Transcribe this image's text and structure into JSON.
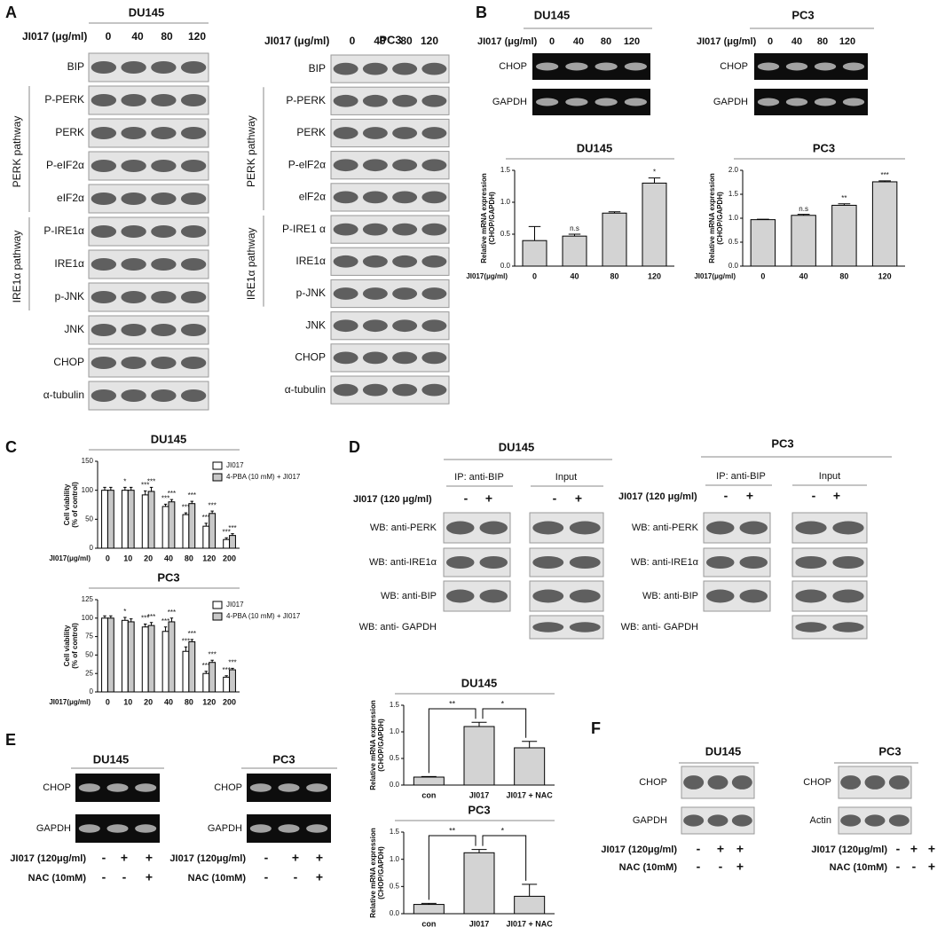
{
  "panel_a": {
    "label": "A",
    "blots": [
      {
        "title": "DU145",
        "dose_label": "JI017 (μg/ml)",
        "doses": [
          "0",
          "40",
          "80",
          "120"
        ],
        "rows": [
          "BIP",
          "P-PERK",
          "PERK",
          "P-eIF2α",
          "eIF2α",
          "P-IRE1α",
          "IRE1α",
          "p-JNK",
          "JNK",
          "CHOP",
          "α-tubulin"
        ],
        "pathways": [
          "PERK pathway",
          "IRE1α pathway"
        ]
      },
      {
        "title": "PC3",
        "dose_label": "JI017 (μg/ml)",
        "doses": [
          "0",
          "40",
          "80",
          "120"
        ],
        "rows": [
          "BIP",
          "P-PERK",
          "PERK",
          "P-elF2α",
          "elF2α",
          "P-IRE1 α",
          "IRE1α",
          "p-JNK",
          "JNK",
          "CHOP",
          "α-tubulin"
        ],
        "pathways": [
          "PERK pathway",
          "IRE1α pathway"
        ]
      }
    ]
  },
  "panel_b": {
    "label": "B",
    "gels": [
      {
        "title": "DU145",
        "dose_label": "JI017 (μg/ml)",
        "doses": [
          "0",
          "40",
          "80",
          "120"
        ],
        "rows": [
          "CHOP",
          "GAPDH"
        ]
      },
      {
        "title": "PC3",
        "dose_label": "JI017 (μg/ml)",
        "doses": [
          "0",
          "40",
          "80",
          "120"
        ],
        "rows": [
          "CHOP",
          "GAPDH"
        ]
      }
    ],
    "charts": [
      {
        "type": "bar",
        "title": "DU145",
        "y_label": [
          "Relative mRNA expression",
          "(CHOP/GAPDH)"
        ],
        "x_label": "JI017(μg/ml)",
        "categories": [
          "0",
          "40",
          "80",
          "120"
        ],
        "values": [
          0.4,
          0.47,
          0.83,
          1.3
        ],
        "errors": [
          0.22,
          0.03,
          0.02,
          0.08
        ],
        "sig": [
          null,
          "n.s",
          null,
          "*"
        ],
        "color": "#d3d3d3",
        "ylim": [
          0,
          1.5
        ],
        "yticks": [
          {
            "value": 0,
            "label": "0.0"
          },
          0.5,
          {
            "value": 1,
            "label": "1.0"
          },
          1.5
        ]
      },
      {
        "type": "bar",
        "title": "PC3",
        "y_label": [
          "Relative mRNA expression",
          "(CHOP/GAPDH)"
        ],
        "x_label": "JI017(μg/ml)",
        "categories": [
          "0",
          "40",
          "80",
          "120"
        ],
        "values": [
          0.97,
          1.06,
          1.27,
          1.76
        ],
        "errors": [
          0.01,
          0.02,
          0.03,
          0.02
        ],
        "sig": [
          null,
          "n.s",
          "**",
          "***"
        ],
        "color": "#d3d3d3",
        "ylim": [
          0,
          2
        ],
        "yticks": [
          {
            "value": 0,
            "label": "0.0"
          },
          0.5,
          {
            "value": 1,
            "label": "1.0"
          },
          1.5,
          {
            "value": 2,
            "label": "2.0"
          }
        ]
      }
    ]
  },
  "panel_c": {
    "label": "C",
    "charts": [
      {
        "type": "bar",
        "title": "DU145",
        "y_label": [
          "Cell viability",
          "(% of control)"
        ],
        "x_label": "JI017(μg/ml)",
        "categories": [
          "0",
          "10",
          "20",
          "40",
          "80",
          "120",
          "200"
        ],
        "series": [
          {
            "name": "JI017",
            "color": "#ffffff",
            "values": [
              100,
              100,
              92,
              72,
              58,
              38,
              15
            ],
            "errors": [
              5,
              5,
              7,
              4,
              3,
              5,
              3
            ],
            "sig": [
              null,
              "*",
              "***",
              "***",
              "***",
              "***",
              "***"
            ]
          },
          {
            "name": "4-PBA (10 mM) + JI017",
            "color": "#c8c8c8",
            "values": [
              100,
              100,
              98,
              80,
              77,
              60,
              22
            ],
            "errors": [
              5,
              5,
              7,
              4,
              4,
              4,
              3
            ],
            "sig": [
              null,
              null,
              "***",
              "***",
              "***",
              "***",
              "***"
            ]
          }
        ],
        "ylim": [
          0,
          150
        ],
        "yticks": [
          0,
          50,
          100,
          150
        ]
      },
      {
        "type": "bar",
        "title": "PC3",
        "y_label": [
          "Cell viability",
          "(% of control)"
        ],
        "x_label": "JI017(μg/ml)",
        "categories": [
          "0",
          "10",
          "20",
          "40",
          "80",
          "120",
          "200"
        ],
        "series": [
          {
            "name": "JI017",
            "color": "#ffffff",
            "values": [
              100,
              97,
              88,
              82,
              55,
              25,
              20
            ],
            "errors": [
              3,
              4,
              4,
              6,
              6,
              3,
              2
            ],
            "sig": [
              null,
              "*",
              "***",
              "***",
              "***",
              "***",
              "***"
            ]
          },
          {
            "name": "4-PBA (10 mM) + JI017",
            "color": "#c8c8c8",
            "values": [
              100,
              95,
              90,
              95,
              68,
              40,
              30
            ],
            "errors": [
              3,
              4,
              4,
              5,
              3,
              3,
              2
            ],
            "sig": [
              null,
              null,
              "***",
              "***",
              "***",
              "***",
              "***"
            ]
          }
        ],
        "ylim": [
          0,
          125
        ],
        "yticks": [
          0,
          25,
          50,
          75,
          100,
          125
        ]
      }
    ]
  },
  "panel_d": {
    "label": "D",
    "blocks": [
      {
        "title": "DU145",
        "ip_label": "IP: anti-BIP",
        "input_label": "Input",
        "treatment": "JI017 (120 μg/ml)",
        "signs": [
          "-",
          "+"
        ],
        "rows": [
          "WB: anti-PERK",
          "WB: anti-IRE1α",
          "WB: anti-BIP",
          "WB: anti- GAPDH"
        ]
      },
      {
        "title": "PC3",
        "ip_label": "IP: anti-BIP",
        "input_label": "Input",
        "treatment": "JI017 (120 μg/ml)",
        "signs": [
          "-",
          "+"
        ],
        "rows": [
          "WB: anti-PERK",
          "WB: anti-IRE1α",
          "WB: anti-BIP",
          "WB: anti- GAPDH"
        ]
      }
    ]
  },
  "panel_e": {
    "label": "E",
    "gels": [
      {
        "title": "DU145",
        "rows": [
          "CHOP",
          "GAPDH"
        ],
        "conditions": [
          {
            "label": "JI017 (120μg/ml)",
            "signs": [
              "-",
              "+",
              "+"
            ]
          },
          {
            "label": "NAC (10mM)",
            "signs": [
              "-",
              "-",
              "+"
            ]
          }
        ]
      },
      {
        "title": "PC3",
        "rows": [
          "CHOP",
          "GAPDH"
        ],
        "conditions": [
          {
            "label": "JI017 (120μg/ml)",
            "signs": [
              "-",
              "+",
              "+"
            ]
          },
          {
            "label": "NAC (10mM)",
            "signs": [
              "-",
              "-",
              "+"
            ]
          }
        ]
      }
    ],
    "charts": [
      {
        "type": "bar",
        "title": "DU145",
        "y_label": [
          "Relative mRNA expression",
          "(CHOP/GAPDH)"
        ],
        "categories": [
          "con",
          "JI017",
          "JI017 + NAC"
        ],
        "values": [
          0.15,
          1.1,
          0.7
        ],
        "errors": [
          0.01,
          0.08,
          0.12
        ],
        "brackets": [
          "**",
          "*"
        ],
        "color": "#d3d3d3",
        "ylim": [
          0,
          1.5
        ],
        "yticks": [
          {
            "value": 0,
            "label": "0.0"
          },
          0.5,
          {
            "value": 1,
            "label": "1.0"
          },
          1.5
        ]
      },
      {
        "type": "bar",
        "title": "PC3",
        "y_label": [
          "Relative mRNA expression",
          "(CHOP/GAPDH)"
        ],
        "categories": [
          "con",
          "JI017",
          "JI017 + NAC"
        ],
        "values": [
          0.17,
          1.12,
          0.32
        ],
        "errors": [
          0.02,
          0.06,
          0.22
        ],
        "brackets": [
          "**",
          "*"
        ],
        "color": "#d3d3d3",
        "ylim": [
          0,
          1.5
        ],
        "yticks": [
          {
            "value": 0,
            "label": "0.0"
          },
          0.5,
          {
            "value": 1,
            "label": "1.0"
          },
          1.5
        ]
      }
    ]
  },
  "panel_f": {
    "label": "F",
    "blots": [
      {
        "title": "DU145",
        "rows": [
          "CHOP",
          "GAPDH"
        ],
        "conditions": [
          {
            "label": "JI017 (120μg/ml)",
            "signs": [
              "-",
              "+",
              "+"
            ]
          },
          {
            "label": "NAC (10mM)",
            "signs": [
              "-",
              "-",
              "+"
            ]
          }
        ]
      },
      {
        "title": "PC3",
        "rows": [
          "CHOP",
          "Actin"
        ],
        "conditions": [
          {
            "label": "JI017 (120μg/ml)",
            "signs": [
              "-",
              "+",
              "+"
            ]
          },
          {
            "label": "NAC (10mM)",
            "signs": [
              "-",
              "-",
              "+"
            ]
          }
        ]
      }
    ]
  }
}
